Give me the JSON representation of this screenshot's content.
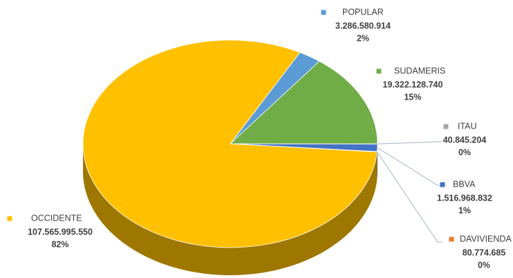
{
  "chart_data": {
    "type": "pie",
    "three_d": true,
    "categories": [
      "POPULAR",
      "SUDAMERIS",
      "ITAU",
      "BBVA",
      "DAVIVIENDA",
      "OCCIDENTE"
    ],
    "values": [
      3286580914,
      19322128740,
      40845204,
      1516968832,
      80774685,
      107565995550
    ],
    "value_labels": [
      "3.286.580.914",
      "19.322.128.740",
      "40.845.204",
      "1.516.968.832",
      "80.774.685",
      "107.565.995.550"
    ],
    "percent_labels": [
      "2%",
      "15%",
      "0%",
      "1%",
      "0%",
      "82%"
    ],
    "colors": [
      "#5B9BD5",
      "#70AD47",
      "#A5A5A5",
      "#4472C4",
      "#ED7D31",
      "#FFC000"
    ]
  }
}
